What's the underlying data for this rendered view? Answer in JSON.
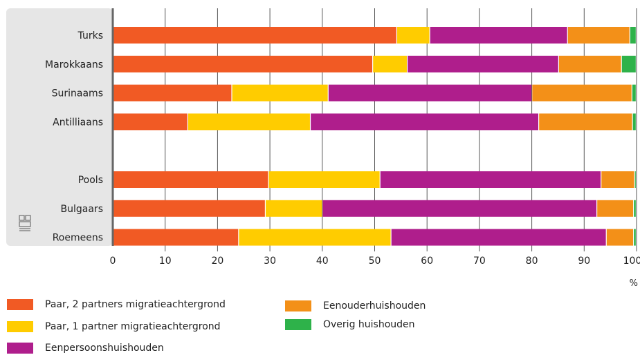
{
  "chart_data": {
    "type": "bar",
    "orientation": "horizontal",
    "stacked": true,
    "categories": [
      "Turks",
      "Marokkaans",
      "Surinaams",
      "Antilliaans",
      "",
      "Pools",
      "Bulgaars",
      "Roemeens"
    ],
    "series": [
      {
        "name": "Paar, 2 partners migratieachtergrond",
        "color": "#f15a24",
        "values": [
          54.3,
          49.7,
          22.8,
          14.4,
          null,
          29.8,
          29.2,
          24.1
        ]
      },
      {
        "name": "Paar, 1 partner migratieachtergrond",
        "color": "#ffcc00",
        "values": [
          6.3,
          6.6,
          18.4,
          23.4,
          null,
          21.3,
          10.9,
          29.1
        ]
      },
      {
        "name": "Eenpersoonshuishouden",
        "color": "#af1e8c",
        "values": [
          26.3,
          28.9,
          38.9,
          43.6,
          null,
          42.2,
          52.4,
          41.1
        ]
      },
      {
        "name": "Eenouderhuishouden",
        "color": "#f39018",
        "values": [
          11.9,
          12.0,
          19.1,
          17.9,
          null,
          6.4,
          7.0,
          5.2
        ]
      },
      {
        "name": "Overig huishouden",
        "color": "#2eb24a",
        "values": [
          1.2,
          2.8,
          0.8,
          0.7,
          null,
          0.3,
          0.5,
          0.5
        ]
      }
    ],
    "xlim": [
      0,
      100
    ],
    "xticks": [
      "0",
      "10",
      "20",
      "30",
      "40",
      "50",
      "60",
      "70",
      "80",
      "90",
      "100"
    ],
    "unit": "%",
    "grid": true,
    "legend_position": "bottom",
    "logo": "cbs"
  }
}
